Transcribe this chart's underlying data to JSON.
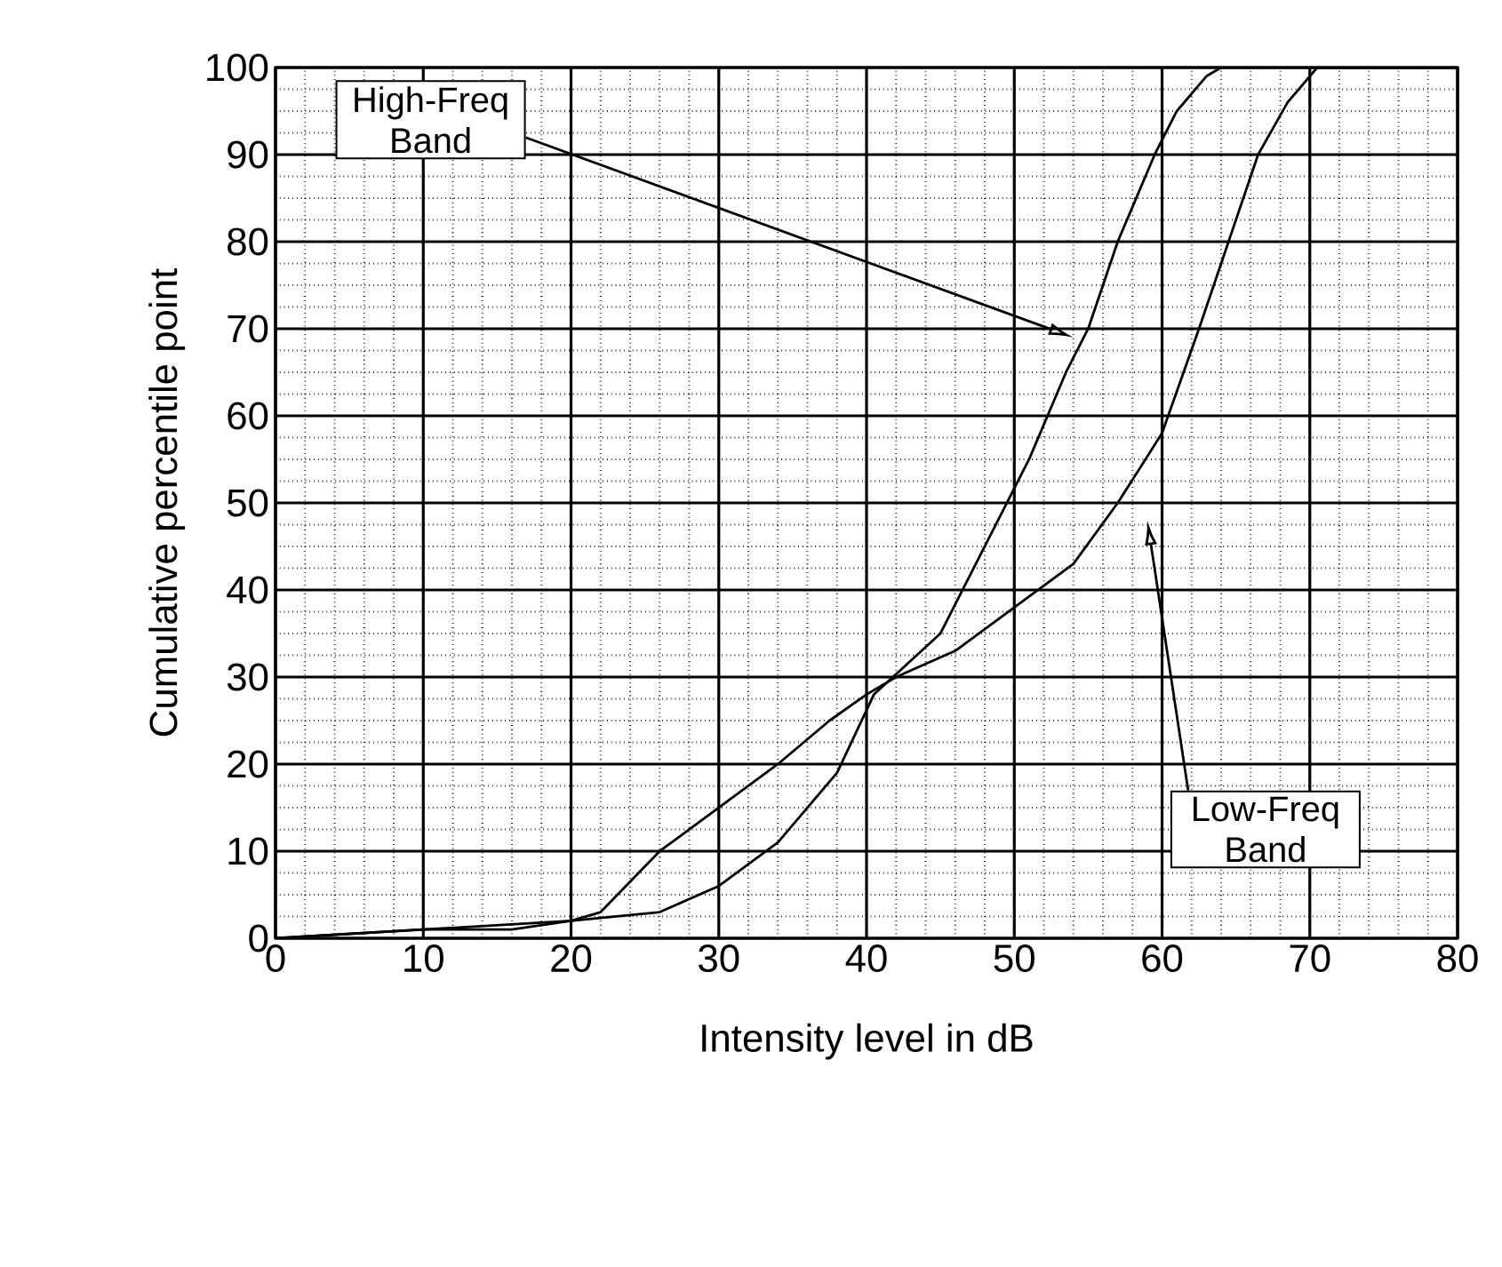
{
  "chart_data": {
    "type": "line",
    "xlabel": "Intensity level in dB",
    "ylabel": "Cumulative percentile point",
    "xlim": [
      0,
      80
    ],
    "ylim": [
      0,
      100
    ],
    "xticks": [
      0,
      10,
      20,
      30,
      40,
      50,
      60,
      70,
      80
    ],
    "yticks": [
      0,
      10,
      20,
      30,
      40,
      50,
      60,
      70,
      80,
      90,
      100
    ],
    "grid": true,
    "legend": false,
    "marker": "none",
    "line_style": "solid",
    "series": [
      {
        "color": "#000000",
        "x": [
          0,
          10,
          16,
          20,
          26,
          30,
          34,
          38,
          40.5,
          45,
          48,
          51,
          53.5,
          55,
          57,
          59.5,
          61,
          63,
          64,
          80
        ],
        "values": [
          0,
          1,
          1,
          2,
          3,
          6,
          11,
          19,
          28,
          35,
          45,
          55,
          65,
          70,
          80,
          90,
          95,
          99,
          100,
          100
        ]
      },
      {
        "color": "#000000",
        "x": [
          0,
          10,
          20,
          22,
          26,
          30,
          34,
          37.5,
          40,
          42,
          46,
          50,
          54,
          57,
          60,
          62.5,
          64.5,
          66.5,
          68.5,
          70.5,
          80
        ],
        "values": [
          0,
          1,
          2,
          3,
          10,
          15,
          20,
          25,
          28,
          30,
          33,
          38,
          43,
          50,
          58,
          70,
          80,
          90,
          96,
          100,
          100
        ]
      }
    ],
    "annotations": [
      "High-Freq Band",
      "Low-Freq Band"
    ]
  }
}
